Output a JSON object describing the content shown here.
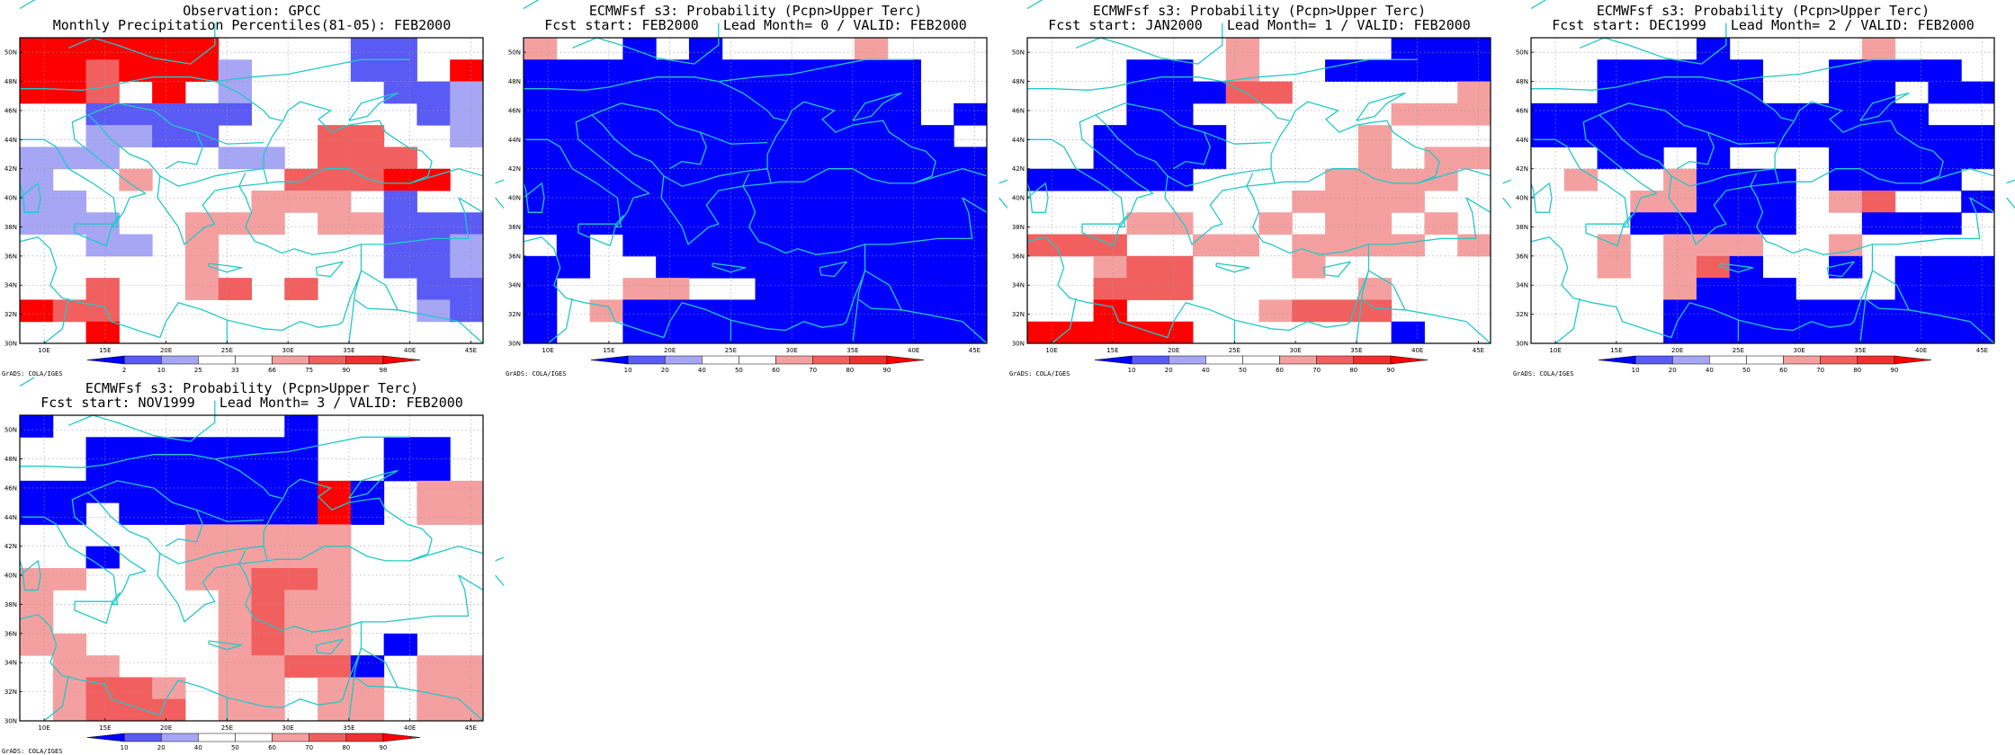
{
  "colors": {
    "deep_blue": "#0000ff",
    "mid_blue": "#5a5af5",
    "light_blue": "#a6a6f5",
    "pale_red": "#f5a0a0",
    "mid_red": "#f25f5f",
    "deep_red": "#ff0000",
    "coast": "#22c8c8",
    "grid": "#9a9a9a"
  },
  "lat_labels": [
    "30N",
    "32N",
    "34N",
    "36N",
    "38N",
    "40N",
    "42N",
    "44N",
    "46N",
    "48N",
    "50N"
  ],
  "lon_labels": [
    "10E",
    "15E",
    "20E",
    "25E",
    "30E",
    "35E",
    "40E",
    "45E"
  ],
  "legend_obs": [
    "2",
    "10",
    "25",
    "33",
    "66",
    "75",
    "90",
    "98"
  ],
  "legend_fc": [
    "10",
    "20",
    "40",
    "50",
    "60",
    "70",
    "80",
    "90"
  ],
  "credit": "GrADS: COLA/IGES",
  "panels": [
    {
      "title1": "Observation: GPCC",
      "title2": "Monthly Precipitation Percentiles(81-05): FEB2000",
      "legend_type": "obs",
      "grid": [
        "xxxxxx....bb..",
        "xxaxxxv...bb.x",
        "xxa.x.v....bbv",
        "..bbbbb.....bv",
        "..vvbb...aa..v",
        "vvv...vv.aaa..",
        "v..p....aaaxx.",
        "vv.....ppp.b..",
        "vvv..ppp.ppbbb",
        "..vv.p.....bbv",
        ".....p.....bbv",
        "..a..pa.a...bb",
        "xaa.........vb",
        "..x..........."
      ]
    },
    {
      "title1": "ECMWFsf s3: Probability (Pcpn>Upper Terc)",
      "title2": "Fcst start: FEB2000   Lead Month= 0 / VALID: FEB2000",
      "legend_type": "fc",
      "grid": [
        "p..B.B....p...",
        "BBBBBBBBBBBB..",
        "BBBBBBBBBBBB..",
        "BBBBBBBBBBBB.B",
        "BBBBBBBBBBBBB.",
        "BBBBBBBBBBBBBB",
        "BBBBBBBBBBBBBB",
        "BBBBBBBBBBBBBB",
        "BBBBBBBBBBBBBB",
        ".B.BBBBBBBBBBB",
        "BB..BBBBBBBBBB",
        "B..pp..BBBBBBB",
        "B.pBBBBBBBBBBB",
        "B..BBBBBBBBBBB"
      ]
    },
    {
      "title1": "ECMWFsf s3: Probability (Pcpn>Upper Terc)",
      "title2": "Fcst start: JAN2000   Lead Month= 1 / VALID: FEB2000",
      "legend_type": "fc",
      "grid": [
        "......p....BBB",
        "...BB.p..BBBBB",
        "...BBBaa.....p",
        "...BB......ppp",
        "..BBBB....p...",
        "..BBBB....p.pp",
        "BBBBB....pppp.",
        "........pppp..",
        "...pp..p.pp.p.",
        "aaa..pp.pppp.p",
        "..paa...p.....",
        "..aaa.....p...",
        "..x....paaa...",
        "xxxxx......B.."
      ]
    },
    {
      "title1": "ECMWFsf s3: Probability (Pcpn>Upper Terc)",
      "title2": "Fcst start: DEC1999   Lead Month= 2 / VALID: FEB2000",
      "legend_type": "fc",
      "grid": [
        ".....B....p...",
        "..BBBBB..BBBB.",
        "..BBBBB..BB.BB",
        "BBBBBBBBBBBB..",
        "BBBBBBBBBBBBBB",
        "..BB.B...BBBBB",
        ".p..pBBB.BBBB.",
        "...ppBBB.pa..B",
        "...BBBBB..BBB.",
        "..p.ppp..p....",
        "..p.paB..B.BBB",
        "....pBBB...BBB",
        "....BBBBBBBBBB",
        "....BBBBBBBBBB"
      ]
    },
    {
      "title1": "ECMWFsf s3: Probability (Pcpn>Upper Terc)",
      "title2": "Fcst start: NOV1999   Lead Month= 3 / VALID: FEB2000",
      "legend_type": "fc",
      "grid": [
        "B.......B.....",
        "..BBBBBBB..BB.",
        "..BBBBBBB..BB.",
        "BBBBBBBBBxB.pp",
        "BB.BBBBBBxB.pp",
        ".....ppppp....",
        "..B..ppppp....",
        "pp...ppaap....",
        "p.....papp....",
        "p.....papp....",
        "pp....papp.B..",
        ".pp...ppaaB.pp",
        ".paap.pp.pp.pp",
        ".paaa.pp.pp.pp"
      ]
    }
  ]
}
